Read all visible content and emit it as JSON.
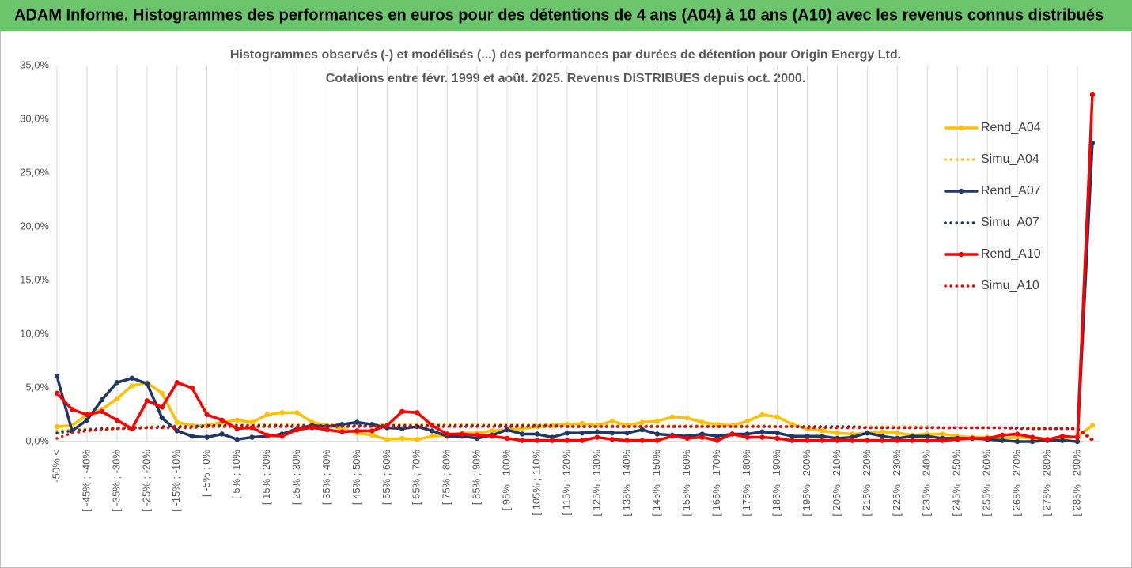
{
  "header": {
    "title": "ADAM Informe. Histogrammes des performances en euros pour des détentions de 4 ans (A04) à 10 ans (A10) avec les revenus connus distribués"
  },
  "chart_data": {
    "type": "line",
    "title": "Histogrammes observés (-) et modélisés (...) des performances par durées de détention pour Origin Energy Ltd.",
    "subtitle": "Cotations entre févr. 1999 et août. 2025. Revenus DISTRIBUES depuis oct. 2000.",
    "categories": [
      "-50% <",
      null,
      "[ -45% ; -40%",
      null,
      "[ -35% ; -30%",
      null,
      "[ -25% ; -20%",
      null,
      "[ -15% ; -10%",
      null,
      "[ -5% ; 0%",
      null,
      "[ 5% ; 10%",
      null,
      "[ 15% ; 20%",
      null,
      "[ 25% ; 30%",
      null,
      "[ 35% ; 40%",
      null,
      "[ 45% ; 50%",
      null,
      "[ 55% ; 60%",
      null,
      "[ 65% ; 70%",
      null,
      "[ 75% ; 80%",
      null,
      "[ 85% ; 90%",
      null,
      "[ 95% ; 100%",
      null,
      "[ 105% ; 110%",
      null,
      "[ 115% ; 120%",
      null,
      "[ 125% ; 130%",
      null,
      "[ 135% ; 140%",
      null,
      "[ 145% ; 150%",
      null,
      "[ 155% ; 160%",
      null,
      "[ 165% ; 170%",
      null,
      "[ 175% ; 180%",
      null,
      "[ 185% ; 190%",
      null,
      "[ 195% ; 200%",
      null,
      "[ 205% ; 210%",
      null,
      "[ 215% ; 220%",
      null,
      "[ 225% ; 230%",
      null,
      "[ 235% ; 240%",
      null,
      "[ 245% ; 250%",
      null,
      "[ 255% ; 260%",
      null,
      "[ 265% ; 270%",
      null,
      "[ 275% ; 280%",
      null,
      "[ 285% ; 290%",
      null
    ],
    "series": [
      {
        "name": "Rend_A04",
        "color": "#ffc000",
        "line_style": "solid",
        "marker": true,
        "values": [
          1.4,
          1.5,
          2.5,
          3.0,
          4.0,
          5.2,
          5.5,
          4.5,
          1.8,
          1.5,
          1.5,
          1.8,
          2.0,
          1.8,
          2.5,
          2.7,
          2.7,
          1.8,
          1.5,
          1.2,
          0.8,
          0.6,
          0.2,
          0.3,
          0.2,
          0.5,
          0.6,
          0.8,
          0.8,
          1.0,
          1.1,
          1.2,
          1.4,
          1.5,
          1.6,
          1.7,
          1.5,
          1.9,
          1.5,
          1.8,
          1.9,
          2.3,
          2.2,
          1.8,
          1.6,
          1.5,
          1.9,
          2.5,
          2.3,
          1.6,
          1.2,
          1.0,
          0.8,
          0.7,
          0.8,
          0.9,
          0.8,
          0.6,
          0.7,
          0.7,
          0.5,
          0.4,
          0.4,
          0.3,
          0.4,
          0.3,
          0.2,
          0.2,
          0.5,
          1.5
        ]
      },
      {
        "name": "Simu_A04",
        "color": "#ffc000",
        "line_style": "dotted",
        "marker": false,
        "values": [
          1.0,
          1.1,
          1.2,
          1.2,
          1.3,
          1.3,
          1.4,
          1.4,
          1.5,
          1.5,
          1.5,
          1.5,
          1.6,
          1.6,
          1.6,
          1.6,
          1.6,
          1.6,
          1.6,
          1.6,
          1.6,
          1.6,
          1.6,
          1.6,
          1.6,
          1.6,
          1.6,
          1.6,
          1.6,
          1.6,
          1.6,
          1.6,
          1.6,
          1.6,
          1.6,
          1.6,
          1.5,
          1.5,
          1.5,
          1.5,
          1.5,
          1.5,
          1.5,
          1.5,
          1.5,
          1.5,
          1.5,
          1.5,
          1.4,
          1.4,
          1.4,
          1.4,
          1.4,
          1.4,
          1.4,
          1.4,
          1.4,
          1.4,
          1.4,
          1.3,
          1.3,
          1.3,
          1.3,
          1.3,
          1.3,
          1.3,
          1.2,
          1.2,
          1.2,
          0.3
        ]
      },
      {
        "name": "Rend_A07",
        "color": "#1f3864",
        "line_style": "solid",
        "marker": true,
        "values": [
          6.1,
          1.0,
          2.0,
          3.9,
          5.5,
          5.9,
          5.4,
          2.2,
          1.0,
          0.5,
          0.4,
          0.7,
          0.2,
          0.4,
          0.5,
          0.7,
          1.2,
          1.5,
          1.4,
          1.6,
          1.8,
          1.6,
          1.3,
          1.2,
          1.4,
          1.0,
          0.5,
          0.5,
          0.3,
          0.6,
          1.1,
          0.7,
          0.7,
          0.4,
          0.8,
          0.8,
          0.9,
          0.8,
          0.8,
          1.1,
          0.7,
          0.6,
          0.5,
          0.7,
          0.5,
          0.7,
          0.7,
          0.9,
          0.8,
          0.5,
          0.5,
          0.5,
          0.3,
          0.4,
          0.8,
          0.5,
          0.3,
          0.5,
          0.5,
          0.3,
          0.3,
          0.3,
          0.2,
          0.1,
          0.0,
          0.0,
          0.1,
          0.1,
          0.0,
          27.8
        ]
      },
      {
        "name": "Simu_A07",
        "color": "#1f3864",
        "line_style": "dotted",
        "marker": false,
        "values": [
          0.8,
          1.0,
          1.1,
          1.2,
          1.2,
          1.3,
          1.3,
          1.4,
          1.4,
          1.4,
          1.5,
          1.5,
          1.5,
          1.5,
          1.5,
          1.5,
          1.5,
          1.5,
          1.5,
          1.5,
          1.5,
          1.5,
          1.5,
          1.5,
          1.5,
          1.5,
          1.5,
          1.5,
          1.5,
          1.5,
          1.5,
          1.5,
          1.5,
          1.5,
          1.4,
          1.4,
          1.4,
          1.4,
          1.4,
          1.4,
          1.4,
          1.4,
          1.4,
          1.4,
          1.4,
          1.4,
          1.4,
          1.4,
          1.4,
          1.4,
          1.4,
          1.4,
          1.4,
          1.4,
          1.3,
          1.3,
          1.3,
          1.3,
          1.3,
          1.3,
          1.3,
          1.3,
          1.3,
          1.3,
          1.3,
          1.2,
          1.2,
          1.2,
          1.2,
          0.2
        ]
      },
      {
        "name": "Rend_A10",
        "color": "#ff0000",
        "line_style": "solid",
        "marker": true,
        "values": [
          4.5,
          3.0,
          2.5,
          2.8,
          2.0,
          1.2,
          3.8,
          3.2,
          5.5,
          5.0,
          2.5,
          2.0,
          1.2,
          1.3,
          0.6,
          0.5,
          1.1,
          1.3,
          1.1,
          0.9,
          1.0,
          1.0,
          1.5,
          2.8,
          2.7,
          1.5,
          0.7,
          0.7,
          0.6,
          0.5,
          0.3,
          0.1,
          0.1,
          0.1,
          0.1,
          0.1,
          0.4,
          0.2,
          0.1,
          0.1,
          0.1,
          0.5,
          0.3,
          0.4,
          0.1,
          0.7,
          0.4,
          0.4,
          0.3,
          0.1,
          0.1,
          0.1,
          0.1,
          0.1,
          0.1,
          0.1,
          0.1,
          0.1,
          0.1,
          0.1,
          0.2,
          0.3,
          0.3,
          0.6,
          0.7,
          0.4,
          0.2,
          0.5,
          0.4,
          32.3
        ]
      },
      {
        "name": "Simu_A10",
        "color": "#ff0000",
        "line_style": "dotted",
        "marker": false,
        "values": [
          0.3,
          0.8,
          1.0,
          1.1,
          1.2,
          1.2,
          1.3,
          1.3,
          1.3,
          1.3,
          1.4,
          1.4,
          1.4,
          1.4,
          1.4,
          1.4,
          1.4,
          1.4,
          1.4,
          1.4,
          1.4,
          1.4,
          1.4,
          1.4,
          1.4,
          1.4,
          1.4,
          1.4,
          1.4,
          1.4,
          1.4,
          1.4,
          1.4,
          1.4,
          1.4,
          1.4,
          1.4,
          1.4,
          1.4,
          1.4,
          1.4,
          1.4,
          1.4,
          1.4,
          1.4,
          1.4,
          1.4,
          1.4,
          1.4,
          1.4,
          1.3,
          1.3,
          1.3,
          1.3,
          1.3,
          1.3,
          1.3,
          1.3,
          1.3,
          1.3,
          1.3,
          1.3,
          1.3,
          1.3,
          1.2,
          1.2,
          1.2,
          1.2,
          1.2,
          0.1
        ]
      }
    ],
    "ylim": [
      0,
      35
    ],
    "yticks": [
      {
        "value": 0,
        "label": "0,0%"
      },
      {
        "value": 5,
        "label": "5,0%"
      },
      {
        "value": 10,
        "label": "10,0%"
      },
      {
        "value": 15,
        "label": "15,0%"
      },
      {
        "value": 20,
        "label": "20,0%"
      },
      {
        "value": 25,
        "label": "25,0%"
      },
      {
        "value": 30,
        "label": "30,0%"
      },
      {
        "value": 35,
        "label": "35,0%"
      }
    ],
    "grid": "x",
    "legend": "right"
  }
}
